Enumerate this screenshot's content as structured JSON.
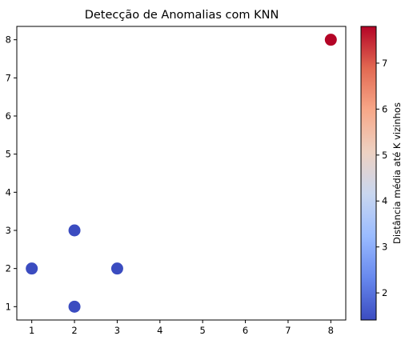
{
  "chart_data": {
    "type": "scatter",
    "title": "Detecção de Anomalias com KNN",
    "xlabel": "",
    "ylabel": "",
    "xlim": [
      0.65,
      8.35
    ],
    "ylim": [
      0.65,
      8.35
    ],
    "xticks": [
      1,
      2,
      3,
      4,
      5,
      6,
      7,
      8
    ],
    "yticks": [
      1,
      2,
      3,
      4,
      5,
      6,
      7,
      8
    ],
    "grid": false,
    "points": [
      {
        "x": 1,
        "y": 2,
        "value": 1.41
      },
      {
        "x": 2,
        "y": 1,
        "value": 1.41
      },
      {
        "x": 2,
        "y": 3,
        "value": 1.41
      },
      {
        "x": 3,
        "y": 2,
        "value": 1.41
      },
      {
        "x": 8,
        "y": 8,
        "value": 7.8
      }
    ],
    "colorbar": {
      "label": "Distância média até K vizinhos",
      "colormap": "coolwarm",
      "range": [
        1.41,
        7.8
      ],
      "ticks": [
        2,
        3,
        4,
        5,
        6,
        7
      ],
      "colors": [
        "#3b4cc0",
        "#6788ee",
        "#9abbff",
        "#c9d7f0",
        "#edd1c2",
        "#f7a889",
        "#e26952",
        "#b40426"
      ]
    }
  }
}
